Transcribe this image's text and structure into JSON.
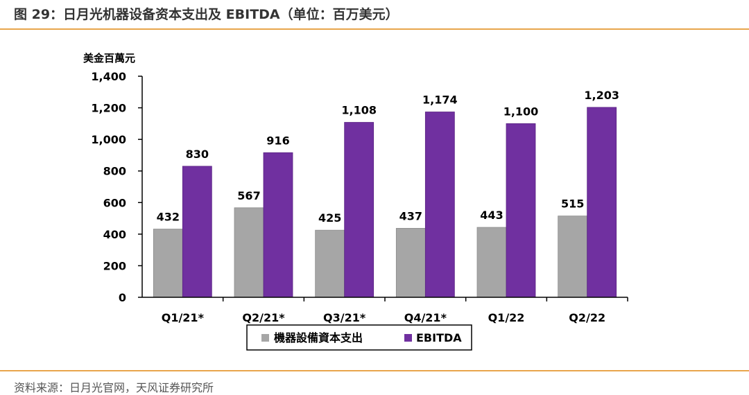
{
  "figure": {
    "title": "图 29：日月光机器设备资本支出及 EBITDA（单位：百万美元）",
    "source": "资料来源：日月光官网，天风证券研究所"
  },
  "colors": {
    "rule": "#E8A54B",
    "capex": "#A6A6A6",
    "ebitda": "#7030A0",
    "axis": "#000000",
    "title": "#333333"
  },
  "chart_data": {
    "type": "bar",
    "ylabel": "美金百萬元",
    "ylim": [
      0,
      1400
    ],
    "yticks": [
      0,
      200,
      400,
      600,
      800,
      1000,
      1200,
      1400
    ],
    "ytick_labels": [
      "0",
      "200",
      "400",
      "600",
      "800",
      "1,000",
      "1,200",
      "1,400"
    ],
    "categories": [
      "Q1/21*",
      "Q2/21*",
      "Q3/21*",
      "Q4/21*",
      "Q1/22",
      "Q2/22"
    ],
    "series": [
      {
        "name": "機器設備資本支出",
        "color": "#A6A6A6",
        "values": [
          432,
          567,
          425,
          437,
          443,
          515
        ],
        "labels": [
          "432",
          "567",
          "425",
          "437",
          "443",
          "515"
        ]
      },
      {
        "name": "EBITDA",
        "color": "#7030A0",
        "values": [
          830,
          916,
          1108,
          1174,
          1100,
          1203
        ],
        "labels": [
          "830",
          "916",
          "1,108",
          "1,174",
          "1,100",
          "1,203"
        ]
      }
    ],
    "grid": false,
    "legend": "bottom"
  }
}
